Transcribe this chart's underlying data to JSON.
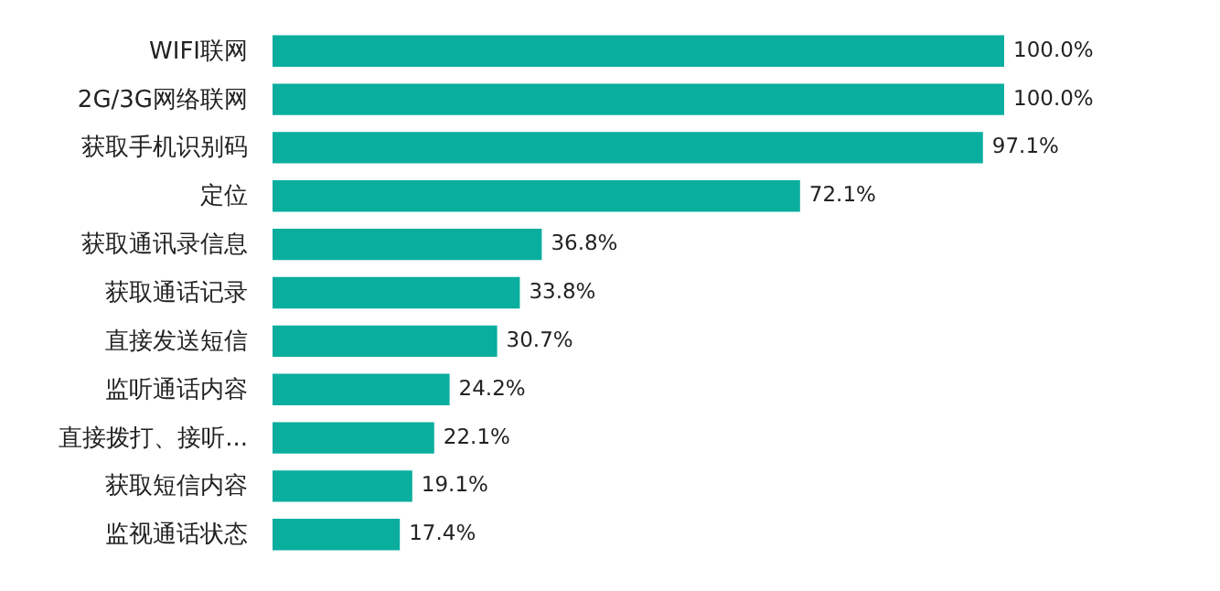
{
  "chart_data": {
    "type": "bar",
    "orientation": "horizontal",
    "categories": [
      "WIFI联网",
      "2G/3G网络联网",
      "获取手机识别码",
      "定位",
      "获取通讯录信息",
      "获取通话记录",
      "直接发送短信",
      "监听通话内容",
      "直接拨打、接听...",
      "获取短信内容",
      "监视通话状态"
    ],
    "values": [
      100.0,
      100.0,
      97.1,
      72.1,
      36.8,
      33.8,
      30.7,
      24.2,
      22.1,
      19.1,
      17.4
    ],
    "value_labels": [
      "100.0%",
      "100.0%",
      "97.1%",
      "72.1%",
      "36.8%",
      "33.8%",
      "30.7%",
      "24.2%",
      "22.1%",
      "19.1%",
      "17.4%"
    ],
    "color": "#0aae9e",
    "xlim": [
      0,
      100
    ]
  }
}
